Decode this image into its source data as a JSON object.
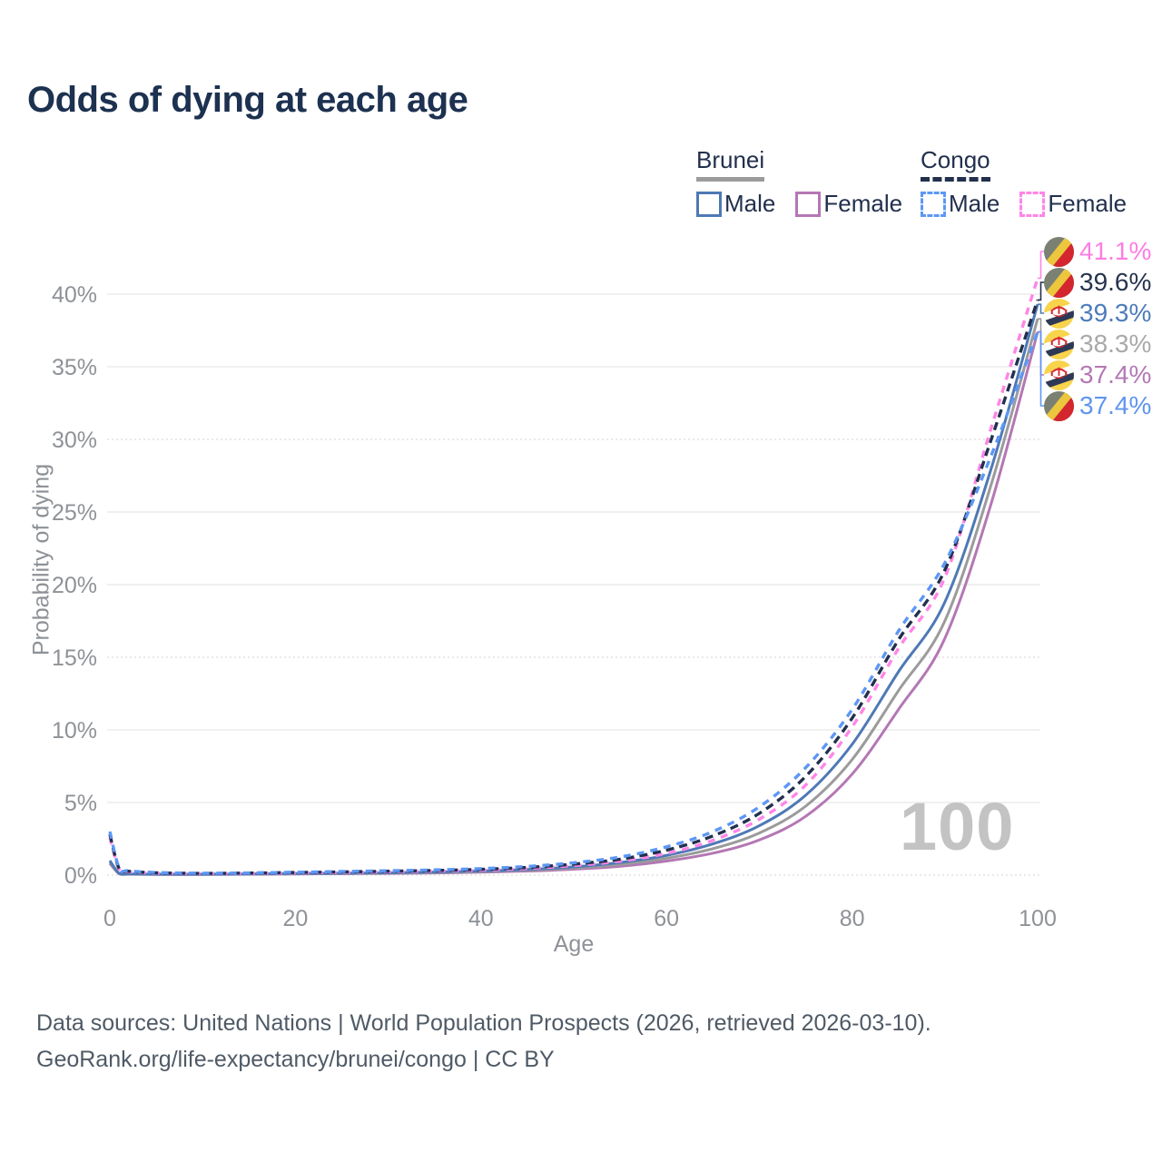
{
  "title": "Odds of dying at each age",
  "watermark_age": "100",
  "legend": {
    "groups": [
      {
        "country": "Brunei",
        "line_style": "solid",
        "underline_color": "#9b9b9b",
        "items": [
          {
            "label": "Male",
            "color": "#4e79b5"
          },
          {
            "label": "Female",
            "color": "#b477b4"
          }
        ]
      },
      {
        "country": "Congo",
        "line_style": "dashed",
        "underline_color": "#22304d",
        "items": [
          {
            "label": "Male",
            "color": "#5d97f5"
          },
          {
            "label": "Female",
            "color": "#ff85e6"
          }
        ]
      }
    ]
  },
  "axes": {
    "x": {
      "label": "Age",
      "ticks": [
        0,
        20,
        40,
        60,
        80,
        100
      ],
      "range": [
        0,
        100
      ]
    },
    "y": {
      "label": "Probability of dying",
      "tick_values": [
        0,
        5,
        10,
        15,
        20,
        25,
        30,
        35,
        40
      ],
      "tick_labels": [
        "0%",
        "5%",
        "10%",
        "15%",
        "20%",
        "25%",
        "30%",
        "35%",
        "40%"
      ],
      "dotted_gridlines": [
        0,
        15,
        30
      ],
      "range": [
        0,
        43
      ]
    }
  },
  "chart_data": {
    "type": "line",
    "title": "Odds of dying at each age",
    "xlabel": "Age",
    "ylabel": "Probability of dying",
    "x": [
      0,
      1,
      2,
      5,
      10,
      15,
      20,
      25,
      30,
      35,
      40,
      45,
      50,
      55,
      60,
      65,
      70,
      75,
      80,
      85,
      90,
      95,
      100
    ],
    "series": [
      {
        "name": "Brunei Female",
        "country": "Brunei",
        "sex": "Female",
        "color": "#b477b4",
        "dash": null,
        "values": [
          0.8,
          0.1,
          0.065,
          0.05,
          0.05,
          0.06,
          0.08,
          0.1,
          0.12,
          0.15,
          0.2,
          0.28,
          0.41,
          0.61,
          0.97,
          1.51,
          2.42,
          4.05,
          6.95,
          11.4,
          16.3,
          25.6,
          37.4
        ],
        "end_value_pct": 37.4
      },
      {
        "name": "Brunei (both)",
        "country": "Brunei",
        "sex": "All",
        "color": "#9b9b9b",
        "dash": null,
        "values": [
          0.9,
          0.11,
          0.07,
          0.055,
          0.055,
          0.07,
          0.095,
          0.11,
          0.14,
          0.18,
          0.24,
          0.34,
          0.49,
          0.74,
          1.16,
          1.82,
          2.9,
          4.75,
          7.95,
          12.7,
          17.5,
          26.9,
          38.3
        ],
        "end_value_pct": 38.3
      },
      {
        "name": "Brunei Male",
        "country": "Brunei",
        "sex": "Male",
        "color": "#4e79b5",
        "dash": null,
        "values": [
          1.0,
          0.12,
          0.08,
          0.06,
          0.06,
          0.08,
          0.11,
          0.13,
          0.16,
          0.21,
          0.28,
          0.39,
          0.57,
          0.87,
          1.36,
          2.15,
          3.4,
          5.5,
          9.0,
          14.0,
          18.8,
          28.0,
          39.3
        ],
        "end_value_pct": 39.3
      },
      {
        "name": "Congo Female",
        "country": "Congo",
        "sex": "Female",
        "color": "#ff85e6",
        "dash": "8 7",
        "values": [
          2.6,
          0.4,
          0.24,
          0.14,
          0.11,
          0.12,
          0.15,
          0.18,
          0.23,
          0.28,
          0.34,
          0.46,
          0.66,
          0.96,
          1.5,
          2.4,
          3.85,
          6.2,
          10.2,
          15.6,
          20.5,
          30.8,
          41.1
        ],
        "end_value_pct": 41.1
      },
      {
        "name": "Congo (both)",
        "country": "Congo",
        "sex": "All",
        "color": "#22304d",
        "dash": "9 6",
        "values": [
          2.8,
          0.45,
          0.27,
          0.16,
          0.12,
          0.14,
          0.18,
          0.22,
          0.27,
          0.32,
          0.4,
          0.53,
          0.76,
          1.1,
          1.72,
          2.7,
          4.25,
          6.8,
          10.8,
          16.2,
          21.0,
          30.0,
          39.6
        ],
        "end_value_pct": 39.6
      },
      {
        "name": "Congo Male",
        "country": "Congo",
        "sex": "Male",
        "color": "#5d97f5",
        "dash": "8 7",
        "values": [
          3.0,
          0.5,
          0.3,
          0.18,
          0.13,
          0.15,
          0.2,
          0.25,
          0.3,
          0.36,
          0.45,
          0.6,
          0.85,
          1.25,
          1.95,
          3.0,
          4.7,
          7.4,
          11.4,
          16.8,
          21.5,
          28.9,
          37.4
        ],
        "end_value_pct": 37.4
      }
    ]
  },
  "end_labels": [
    {
      "value": "41.1%",
      "series": "Congo Female",
      "flag": "congo",
      "color": "#ff7de2"
    },
    {
      "value": "39.6%",
      "series": "Congo (both)",
      "flag": "congo",
      "color": "#26344f"
    },
    {
      "value": "39.3%",
      "series": "Brunei Male",
      "flag": "brunei",
      "color": "#4d7cba"
    },
    {
      "value": "38.3%",
      "series": "Brunei (both)",
      "flag": "brunei",
      "color": "#a9a9a9"
    },
    {
      "value": "37.4%",
      "series": "Brunei Female",
      "flag": "brunei",
      "color": "#b478b6"
    },
    {
      "value": "37.4%",
      "series": "Congo Male",
      "flag": "congo",
      "color": "#5f95ef"
    }
  ],
  "footer": {
    "line1": "Data sources: United Nations | World Population Prospects (2026, retrieved 2026-03-10).",
    "line2": "GeoRank.org/life-expectancy/brunei/congo | CC BY"
  },
  "flag_colors": {
    "brunei": {
      "field": "#f8d44c",
      "white_band": "#ffffff",
      "black_band": "#2d3956",
      "emblem": "#d7282f"
    },
    "congo": {
      "green": "#7a8173",
      "yellow": "#ecc63d",
      "red": "#d4262f"
    }
  }
}
